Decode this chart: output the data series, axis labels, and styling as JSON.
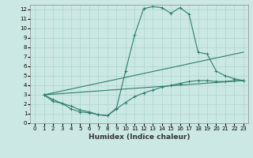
{
  "xlabel": "Humidex (Indice chaleur)",
  "ylabel": "",
  "bg_color": "#cce8e4",
  "line_color": "#2d7d6e",
  "grid_color": "#aad4ce",
  "xlim": [
    -0.5,
    23.5
  ],
  "ylim": [
    0,
    12.5
  ],
  "xticks": [
    0,
    1,
    2,
    3,
    4,
    5,
    6,
    7,
    8,
    9,
    10,
    11,
    12,
    13,
    14,
    15,
    16,
    17,
    18,
    19,
    20,
    21,
    22,
    23
  ],
  "yticks": [
    0,
    1,
    2,
    3,
    4,
    5,
    6,
    7,
    8,
    9,
    10,
    11,
    12
  ],
  "line1_x": [
    1,
    2,
    3,
    4,
    5,
    6,
    7,
    8,
    9,
    10,
    11,
    12,
    13,
    14,
    15,
    16,
    17,
    18,
    19,
    20,
    21,
    22,
    23
  ],
  "line1_y": [
    3.0,
    2.5,
    2.1,
    1.5,
    1.2,
    1.1,
    0.9,
    0.8,
    1.6,
    5.5,
    9.3,
    12.1,
    12.3,
    12.2,
    11.6,
    12.2,
    11.5,
    7.5,
    7.3,
    5.5,
    5.0,
    4.7,
    4.5
  ],
  "line2_x": [
    1,
    23
  ],
  "line2_y": [
    3.0,
    4.5
  ],
  "line3_x": [
    1,
    23
  ],
  "line3_y": [
    3.0,
    7.5
  ],
  "line4_x": [
    1,
    2,
    3,
    4,
    5,
    6,
    7,
    8,
    9,
    10,
    11,
    12,
    13,
    14,
    15,
    16,
    17,
    18,
    19,
    20,
    21,
    22,
    23
  ],
  "line4_y": [
    3.0,
    2.3,
    2.1,
    1.8,
    1.4,
    1.2,
    0.9,
    0.8,
    1.5,
    2.2,
    2.8,
    3.2,
    3.5,
    3.8,
    4.0,
    4.2,
    4.4,
    4.5,
    4.5,
    4.4,
    4.4,
    4.5,
    4.5
  ]
}
